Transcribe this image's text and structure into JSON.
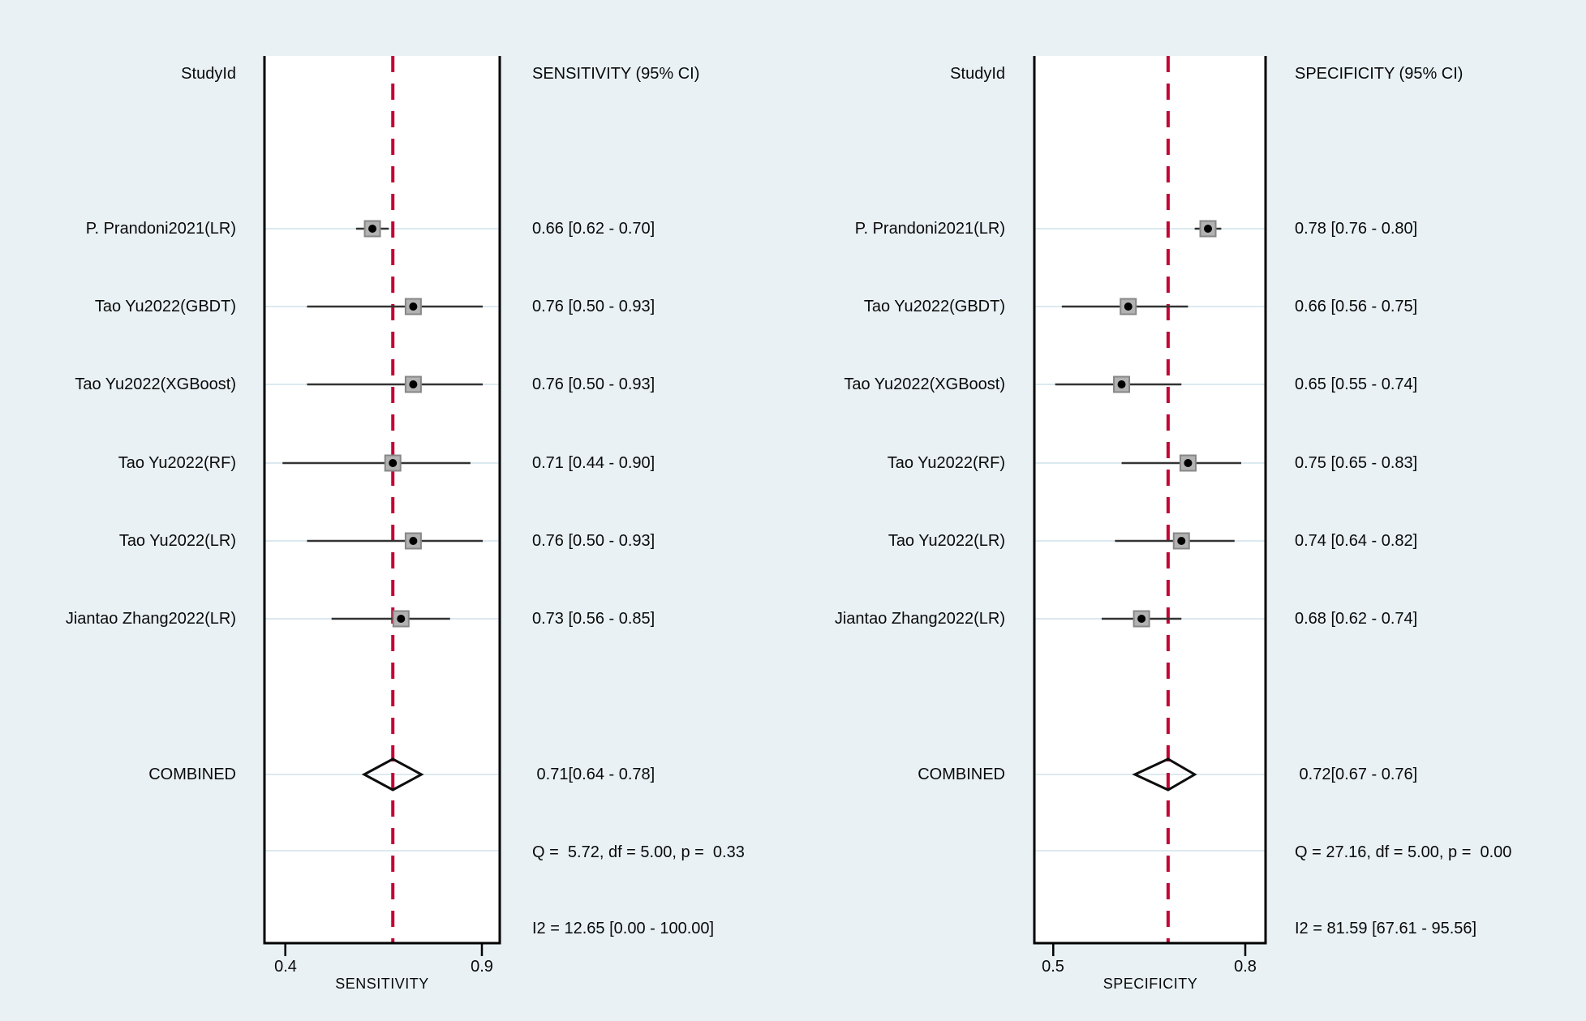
{
  "figure": {
    "background": "#e9f1f4",
    "panel_fill": "#ffffff",
    "frame_color": "#000000",
    "accent_red": "#c10534",
    "gridline_color": "#dce9f0",
    "ci_line_color": "#333333",
    "marker_fill": "#b2b2b2",
    "marker_border": "#878787",
    "marker_dot_color": "#000000",
    "diamond_color": "#0d0d0d"
  },
  "chart_data": [
    {
      "type": "forest",
      "title": "SENSITIVITY (95% CI)",
      "study_column_header": "StudyId",
      "xlabel": "SENSITIVITY",
      "xlim": [
        0.35,
        0.95
      ],
      "xticks": [
        0.4,
        0.9
      ],
      "xtick_labels": [
        "0.4",
        "0.9"
      ],
      "grid": true,
      "studies": [
        {
          "label": "P. Prandoni2021(LR)",
          "estimate": 0.66,
          "ci_low": 0.62,
          "ci_high": 0.7,
          "text": "0.66 [0.62 - 0.70]"
        },
        {
          "label": "Tao Yu2022(GBDT)",
          "estimate": 0.76,
          "ci_low": 0.5,
          "ci_high": 0.93,
          "text": "0.76 [0.50 - 0.93]"
        },
        {
          "label": "Tao Yu2022(XGBoost)",
          "estimate": 0.76,
          "ci_low": 0.5,
          "ci_high": 0.93,
          "text": "0.76 [0.50 - 0.93]"
        },
        {
          "label": "Tao Yu2022(RF)",
          "estimate": 0.71,
          "ci_low": 0.44,
          "ci_high": 0.9,
          "text": "0.71 [0.44 - 0.90]"
        },
        {
          "label": "Tao Yu2022(LR)",
          "estimate": 0.76,
          "ci_low": 0.5,
          "ci_high": 0.93,
          "text": "0.76 [0.50 - 0.93]"
        },
        {
          "label": "Jiantao Zhang2022(LR)",
          "estimate": 0.73,
          "ci_low": 0.56,
          "ci_high": 0.85,
          "text": "0.73 [0.56 - 0.85]"
        }
      ],
      "combined": {
        "label": "COMBINED",
        "estimate": 0.71,
        "ci_low": 0.64,
        "ci_high": 0.78,
        "text": " 0.71[0.64 - 0.78]"
      },
      "heterogeneity_q": "Q =  5.72, df = 5.00, p =  0.33",
      "heterogeneity_i2": "I2 = 12.65 [0.00 - 100.00]"
    },
    {
      "type": "forest",
      "title": "SPECIFICITY (95% CI)",
      "study_column_header": "StudyId",
      "xlabel": "SPECIFICITY",
      "xlim": [
        0.47,
        0.83
      ],
      "xticks": [
        0.5,
        0.8
      ],
      "xtick_labels": [
        "0.5",
        "0.8"
      ],
      "grid": true,
      "studies": [
        {
          "label": "P. Prandoni2021(LR)",
          "estimate": 0.78,
          "ci_low": 0.76,
          "ci_high": 0.8,
          "text": "0.78 [0.76 - 0.80]"
        },
        {
          "label": "Tao Yu2022(GBDT)",
          "estimate": 0.66,
          "ci_low": 0.56,
          "ci_high": 0.75,
          "text": "0.66 [0.56 - 0.75]"
        },
        {
          "label": "Tao Yu2022(XGBoost)",
          "estimate": 0.65,
          "ci_low": 0.55,
          "ci_high": 0.74,
          "text": "0.65 [0.55 - 0.74]"
        },
        {
          "label": "Tao Yu2022(RF)",
          "estimate": 0.75,
          "ci_low": 0.65,
          "ci_high": 0.83,
          "text": "0.75 [0.65 - 0.83]"
        },
        {
          "label": "Tao Yu2022(LR)",
          "estimate": 0.74,
          "ci_low": 0.64,
          "ci_high": 0.82,
          "text": "0.74 [0.64 - 0.82]"
        },
        {
          "label": "Jiantao Zhang2022(LR)",
          "estimate": 0.68,
          "ci_low": 0.62,
          "ci_high": 0.74,
          "text": "0.68 [0.62 - 0.74]"
        }
      ],
      "combined": {
        "label": "COMBINED",
        "estimate": 0.72,
        "ci_low": 0.67,
        "ci_high": 0.76,
        "text": " 0.72[0.67 - 0.76]"
      },
      "heterogeneity_q": "Q = 27.16, df = 5.00, p =  0.00",
      "heterogeneity_i2": "I2 = 81.59 [67.61 - 95.56]"
    }
  ]
}
